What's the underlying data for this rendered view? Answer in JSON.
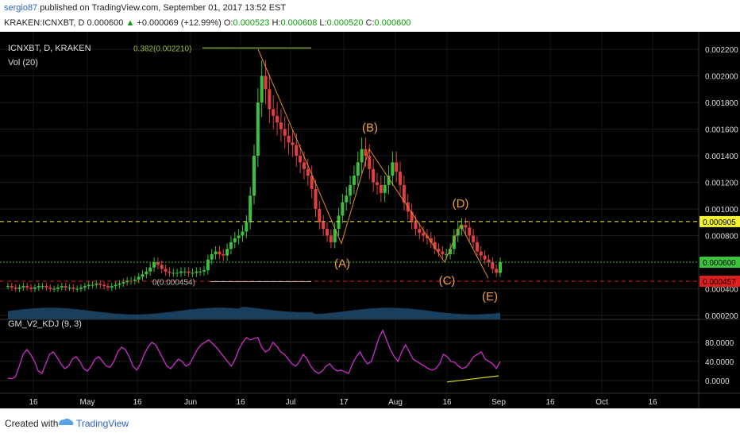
{
  "header": {
    "username": "sergio87",
    "published_text": " published on TradingView.com, September 01, 2017 13:52 EST",
    "symbol_line": "KRAKEN:ICNXBT, D  0.000600",
    "change_text": "+0.000069 (+12.99%)",
    "ohlc": {
      "o_label": " O:",
      "o": "0.000523",
      "h_label": " H:",
      "h": "0.000608",
      "l_label": " L:",
      "l": "0.000520",
      "c_label": " C:",
      "c": "0.000600"
    }
  },
  "chart_data": [
    {
      "type": "candlestick",
      "title": "ICNXBT, D, KRAKEN",
      "indicator_label": "Vol (20)",
      "y_ticks": [
        "0.002200",
        "0.002000",
        "0.001800",
        "0.001600",
        "0.001400",
        "0.001200",
        "0.001000",
        "0.000800",
        "0.000400",
        "0.000200"
      ],
      "y_tick_values": [
        0.0022,
        0.002,
        0.0018,
        0.0016,
        0.0014,
        0.0012,
        0.001,
        0.0008,
        0.0004,
        0.0002
      ],
      "ylim": [
        0.00018,
        0.00232
      ],
      "x_ticks": [
        "16",
        "May",
        "16",
        "Jun",
        "16",
        "Jul",
        "17",
        "Aug",
        "16",
        "Sep",
        "16",
        "Oct",
        "16"
      ],
      "price_labels": [
        {
          "text": "0.000905",
          "value": 0.000905,
          "color": "#f2f230"
        },
        {
          "text": "0.000600",
          "value": 0.0006,
          "color": "#3cc43c"
        },
        {
          "text": "0.000457",
          "value": 0.000457,
          "color": "#e01c1c"
        }
      ],
      "annotations": [
        {
          "text": "0.382(0.002210)",
          "value": 0.00221
        },
        {
          "text": "0(0.000454)",
          "value": 0.000454
        },
        {
          "text": "(A)"
        },
        {
          "text": "(B)"
        },
        {
          "text": "(C)"
        },
        {
          "text": "(D)"
        },
        {
          "text": "(E)"
        }
      ],
      "close_series": [
        0.00042,
        0.00041,
        0.0004,
        0.00041,
        0.00042,
        0.00041,
        0.0004,
        0.00041,
        0.00042,
        0.00042,
        0.00041,
        0.0004,
        0.0004,
        0.00041,
        0.00042,
        0.00041,
        0.00041,
        0.0004,
        0.0004,
        0.00041,
        0.00042,
        0.00043,
        0.00043,
        0.00044,
        0.00043,
        0.00042,
        0.00041,
        0.00042,
        0.00043,
        0.00044,
        0.00045,
        0.00046,
        0.00046,
        0.00047,
        0.00049,
        0.00051,
        0.00053,
        0.00056,
        0.0006,
        0.00058,
        0.00055,
        0.00053,
        0.00052,
        0.00052,
        0.00052,
        0.00053,
        0.00053,
        0.00052,
        0.00052,
        0.00053,
        0.00053,
        0.00054,
        0.00062,
        0.00066,
        0.00068,
        0.00066,
        0.00065,
        0.0007,
        0.00075,
        0.00078,
        0.0008,
        0.00083,
        0.0009,
        0.0011,
        0.0014,
        0.0018,
        0.002,
        0.0019,
        0.00175,
        0.0017,
        0.00165,
        0.0016,
        0.00155,
        0.0015,
        0.00148,
        0.0014,
        0.00135,
        0.0013,
        0.00125,
        0.00115,
        0.001,
        0.0009,
        0.00085,
        0.0008,
        0.00075,
        0.00085,
        0.00095,
        0.00105,
        0.0011,
        0.00118,
        0.00125,
        0.00135,
        0.00145,
        0.0014,
        0.0013,
        0.0012,
        0.00118,
        0.00112,
        0.00118,
        0.00125,
        0.00135,
        0.00128,
        0.00118,
        0.00105,
        0.00098,
        0.0009,
        0.00085,
        0.00082,
        0.0008,
        0.00078,
        0.00075,
        0.0007,
        0.00068,
        0.00066,
        0.00066,
        0.0007,
        0.0008,
        0.00085,
        0.00088,
        0.00086,
        0.0008,
        0.00075,
        0.00068,
        0.00065,
        0.00062,
        0.0006,
        0.00055,
        0.00052,
        0.0006
      ],
      "kdj": {
        "name": "GM_V2_KDJ (9, 3)",
        "y_ticks": [
          "80.0000",
          "40.0000",
          "0.0000"
        ],
        "y_tick_values": [
          80,
          40,
          0
        ],
        "ylim": [
          -10,
          118
        ],
        "series": [
          5,
          4,
          8,
          30,
          55,
          65,
          55,
          40,
          20,
          15,
          35,
          55,
          60,
          48,
          35,
          25,
          30,
          45,
          50,
          40,
          25,
          20,
          30,
          45,
          50,
          40,
          30,
          28,
          40,
          60,
          70,
          65,
          50,
          30,
          22,
          35,
          55,
          70,
          80,
          75,
          60,
          45,
          30,
          25,
          35,
          45,
          40,
          30,
          35,
          50,
          65,
          75,
          80,
          85,
          78,
          70,
          60,
          50,
          40,
          30,
          45,
          65,
          80,
          90,
          85,
          88,
          90,
          70,
          60,
          65,
          80,
          72,
          60,
          55,
          45,
          35,
          30,
          40,
          55,
          45,
          30,
          20,
          15,
          20,
          30,
          35,
          25,
          20,
          22,
          18,
          15,
          35,
          50,
          60,
          45,
          35,
          40,
          65,
          90,
          105,
          85,
          65,
          50,
          40,
          60,
          75,
          60,
          45,
          40,
          35,
          30,
          25,
          22,
          25,
          35,
          55,
          50,
          40,
          38,
          30,
          25,
          28,
          38,
          50,
          55,
          60,
          45,
          40,
          35,
          25,
          40
        ]
      }
    }
  ],
  "footer": {
    "created_with": "Created with",
    "brand": "TradingView"
  }
}
